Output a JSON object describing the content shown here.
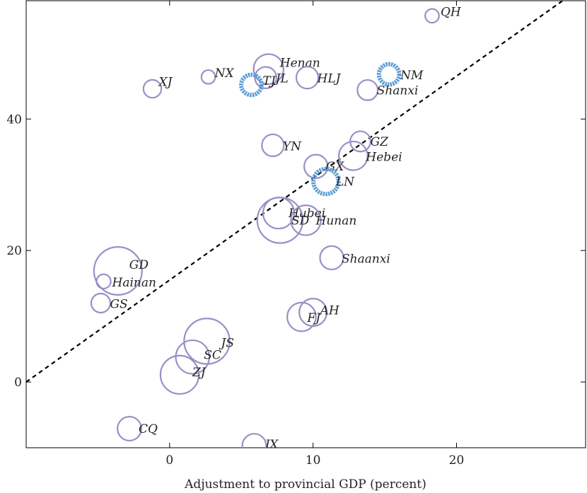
{
  "chart_data": {
    "type": "scatter",
    "xlabel": "Adjustment to provincial GDP (percent)",
    "ylabel": "",
    "xlim": [
      -10,
      29
    ],
    "ylim": [
      -10,
      58
    ],
    "x_ticks": [
      0,
      10,
      20
    ],
    "y_ticks": [
      0,
      20,
      40
    ],
    "grid": false,
    "colors": {
      "normal": "#9a8fc7",
      "highlight": "#5b9bd5",
      "diagonal": "#000000"
    },
    "diagonal_line": {
      "style": "dashed",
      "from": [
        -10,
        0
      ],
      "to": [
        27.4,
        58
      ]
    },
    "points": [
      {
        "label": "QH",
        "x": 18.3,
        "y": 55.7,
        "size": 0.28,
        "highlight": false
      },
      {
        "label": "NX",
        "x": 2.7,
        "y": 46.4,
        "size": 0.28,
        "highlight": false
      },
      {
        "label": "XJ",
        "x": -1.2,
        "y": 44.6,
        "size": 0.45,
        "highlight": false
      },
      {
        "label": "Henan",
        "x": 6.9,
        "y": 47.6,
        "size": 0.95,
        "highlight": false
      },
      {
        "label": "JL",
        "x": 6.7,
        "y": 46.3,
        "size": 0.6,
        "highlight": false
      },
      {
        "label": "TJ",
        "x": 5.7,
        "y": 45.2,
        "size": 0.55,
        "highlight": true
      },
      {
        "label": "HLJ",
        "x": 9.6,
        "y": 46.3,
        "size": 0.62,
        "highlight": false
      },
      {
        "label": "NM",
        "x": 15.3,
        "y": 46.8,
        "size": 0.55,
        "highlight": true
      },
      {
        "label": "Shanxi",
        "x": 13.8,
        "y": 44.4,
        "size": 0.55,
        "highlight": false
      },
      {
        "label": "YN",
        "x": 7.2,
        "y": 36.0,
        "size": 0.62,
        "highlight": false
      },
      {
        "label": "GZ",
        "x": 13.3,
        "y": 36.6,
        "size": 0.55,
        "highlight": false
      },
      {
        "label": "Hebei",
        "x": 12.8,
        "y": 34.4,
        "size": 0.9,
        "highlight": false
      },
      {
        "label": "GX",
        "x": 10.2,
        "y": 32.8,
        "size": 0.68,
        "highlight": false
      },
      {
        "label": "LN",
        "x": 10.9,
        "y": 30.5,
        "size": 0.75,
        "highlight": true
      },
      {
        "label": "Hubei",
        "x": 7.6,
        "y": 25.7,
        "size": 1.0,
        "highlight": false
      },
      {
        "label": "SD",
        "x": 7.7,
        "y": 24.6,
        "size": 1.6,
        "highlight": false
      },
      {
        "label": "Hunan",
        "x": 9.5,
        "y": 24.6,
        "size": 0.95,
        "highlight": false
      },
      {
        "label": "Shaanxi",
        "x": 11.3,
        "y": 18.9,
        "size": 0.68,
        "highlight": false
      },
      {
        "label": "GD",
        "x": -3.6,
        "y": 16.9,
        "size": 1.7,
        "highlight": false
      },
      {
        "label": "Hainan",
        "x": -4.6,
        "y": 15.3,
        "size": 0.3,
        "highlight": false
      },
      {
        "label": "GS",
        "x": -4.8,
        "y": 12.0,
        "size": 0.5,
        "highlight": false
      },
      {
        "label": "AH",
        "x": 10.0,
        "y": 10.6,
        "size": 0.85,
        "highlight": false
      },
      {
        "label": "FJ",
        "x": 9.2,
        "y": 9.9,
        "size": 0.9,
        "highlight": false
      },
      {
        "label": "JS",
        "x": 2.6,
        "y": 6.2,
        "size": 1.6,
        "highlight": false
      },
      {
        "label": "SC",
        "x": 1.6,
        "y": 3.8,
        "size": 1.1,
        "highlight": false
      },
      {
        "label": "ZJ",
        "x": 0.7,
        "y": 1.1,
        "size": 1.3,
        "highlight": false
      },
      {
        "label": "CQ",
        "x": -2.8,
        "y": -7.1,
        "size": 0.7,
        "highlight": false
      },
      {
        "label": "JX",
        "x": 5.9,
        "y": -9.7,
        "size": 0.7,
        "highlight": false
      }
    ]
  }
}
